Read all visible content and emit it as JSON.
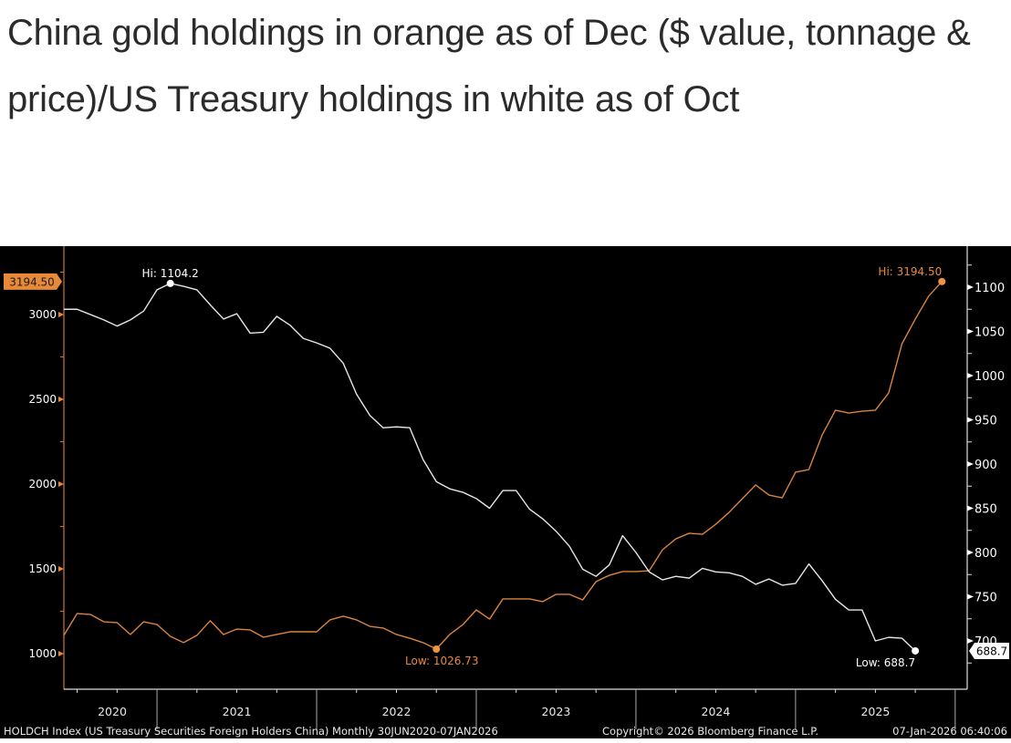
{
  "headline": "China gold holdings in orange as of Dec ($ value, tonnage & price)/US Treasury holdings in white as of Oct",
  "chart_data": {
    "type": "line",
    "title": "China gold holdings (orange) vs US Treasury holdings (white)",
    "x_start": "2020-06",
    "x_frequency": "monthly",
    "x_year_labels": [
      "2020",
      "2021",
      "2022",
      "2023",
      "2024",
      "2025"
    ],
    "left_axis": {
      "ticks": [
        "1000",
        "1500",
        "2000",
        "2500",
        "3000"
      ],
      "range": [
        850,
        3250
      ],
      "color": "#e8893a"
    },
    "right_axis": {
      "ticks": [
        "700",
        "750",
        "800",
        "850",
        "900",
        "950",
        "1000",
        "1050",
        "1100"
      ],
      "range": [
        660,
        1120
      ],
      "color": "#ffffff"
    },
    "series": [
      {
        "name": "China gold holdings ($ value)",
        "axis": "left",
        "color": "#d9843f",
        "end": "2025-12",
        "values": [
          1108,
          1237,
          1231,
          1188,
          1183,
          1113,
          1188,
          1172,
          1102,
          1065,
          1108,
          1194,
          1113,
          1145,
          1140,
          1097,
          1113,
          1129,
          1129,
          1129,
          1199,
          1221,
          1199,
          1161,
          1151,
          1113,
          1091,
          1065,
          1026.73,
          1113,
          1172,
          1258,
          1204,
          1323,
          1323,
          1323,
          1307,
          1350,
          1350,
          1317,
          1425,
          1462,
          1484,
          1484,
          1489,
          1613,
          1677,
          1710,
          1704,
          1763,
          1833,
          1914,
          1995,
          1935,
          1919,
          2070,
          2086,
          2290,
          2436,
          2419,
          2430,
          2436,
          2538,
          2828,
          2973,
          3108,
          3194.5
        ],
        "hi": {
          "label": "Hi: 3194.50",
          "value": 3194.5
        },
        "low": {
          "label": "Low: 1026.73",
          "value": 1026.73
        },
        "last_value_tag": "3194.50"
      },
      {
        "name": "HOLDCH Index (US Treasury Securities Foreign Holders China)",
        "axis": "right",
        "color": "#e6e6e6",
        "end": "2025-10",
        "values": [
          1075,
          1075,
          1069,
          1063,
          1056,
          1063,
          1073,
          1097,
          1104.2,
          1101,
          1097,
          1080,
          1064,
          1070,
          1048,
          1049,
          1067,
          1057,
          1042,
          1037,
          1031,
          1014,
          979,
          955,
          941,
          942,
          941,
          905,
          880,
          872,
          868,
          861,
          850,
          870,
          870,
          849,
          838,
          824,
          807,
          781,
          773,
          786,
          819,
          800,
          778,
          769,
          773,
          771,
          782,
          778,
          777,
          773,
          764,
          770,
          763,
          765,
          787,
          768,
          747,
          735,
          735,
          700,
          704,
          703,
          688.7
        ],
        "hi": {
          "label": "Hi: 1104.2",
          "value": 1104.2
        },
        "low": {
          "label": "Low: 688.7",
          "value": 688.7
        },
        "last_value_tag": "688.7"
      }
    ],
    "footer": {
      "source": "HOLDCH Index (US Treasury Securities Foreign Holders China) Monthly 30JUN2020-07JAN2026",
      "copyright": "Copyright© 2026 Bloomberg Finance L.P.",
      "timestamp": "07-Jan-2026 06:40:06"
    },
    "grid": false
  }
}
